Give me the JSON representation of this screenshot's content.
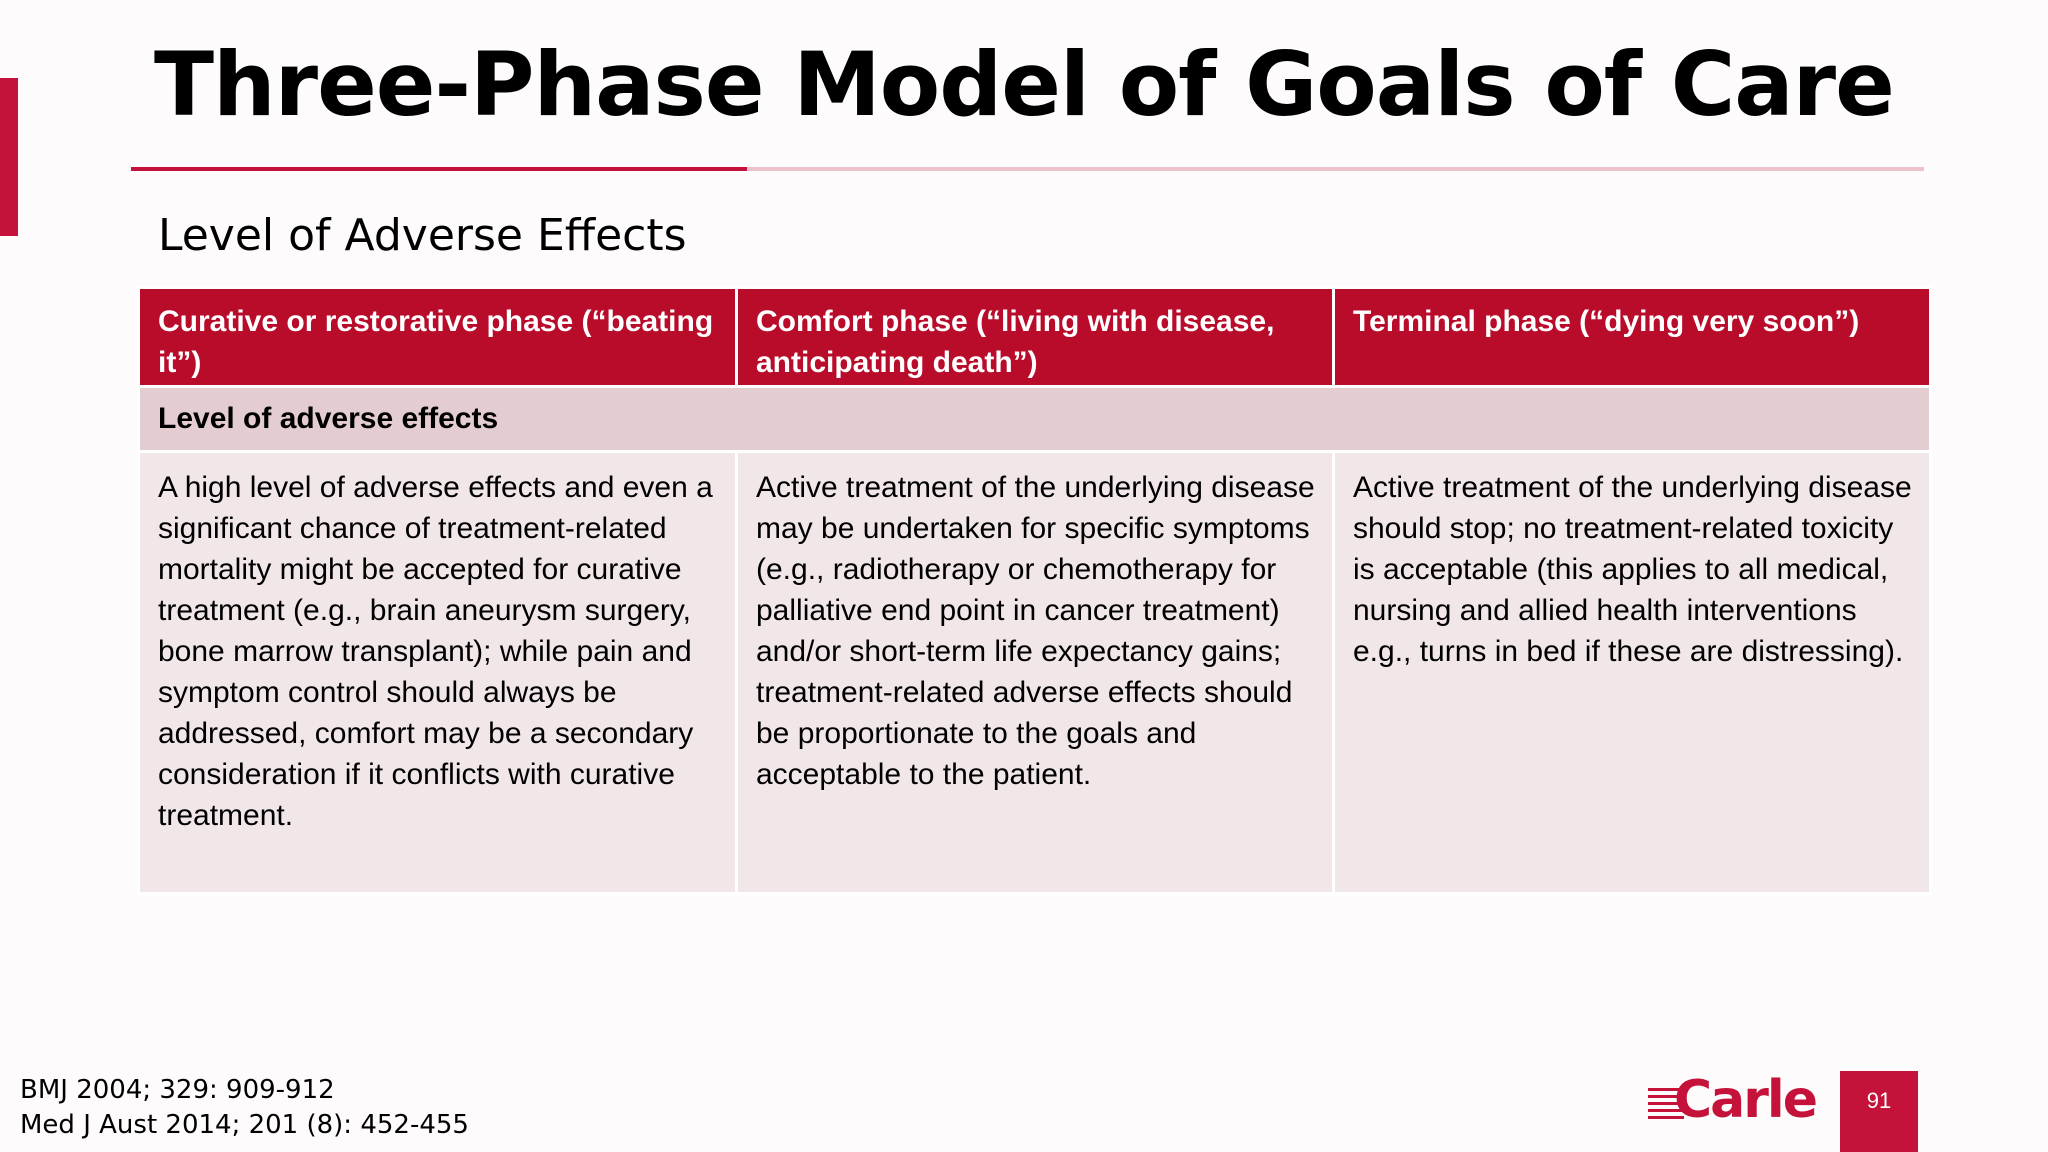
{
  "slide": {
    "title": "Three-Phase Model of Goals of Care",
    "subtitle": "Level of Adverse Effects",
    "page_number": "91"
  },
  "table": {
    "headers": [
      "Curative or restorative phase (“beating it”)",
      "Comfort phase (“living with disease, anticipating death”)",
      "Terminal phase (“dying very soon”)"
    ],
    "section_label": "Level of adverse effects",
    "cells": [
      "A high level of adverse effects and even a significant chance of treatment-related mortality might be accepted for curative treatment (e.g., brain aneurysm surgery, bone marrow transplant); while pain and symptom control should always be addressed, comfort may be a secondary consideration if it conflicts with curative treatment.",
      "Active treatment of the underlying disease may be undertaken for specific symptoms (e.g., radiotherapy or chemotherapy for palliative end point in cancer treatment) and/or short-term life expectancy gains; treatment-related adverse effects should be proportionate to the goals and acceptable to the patient.",
      "Active treatment of the underlying disease should stop; no treatment-related toxicity is acceptable (this applies to all medical, nursing and allied health interventions e.g., turns in bed if these are distressing)."
    ]
  },
  "references": [
    "BMJ 2004; 329: 909-912",
    "Med J Aust 2014; 201 (8): 452-455"
  ],
  "logo": {
    "text": "Carle"
  },
  "colors": {
    "brand_red": "#c4123a",
    "header_red": "#b90c2b",
    "section_bg": "#e4cdd1",
    "cell_bg": "#f1e7e9"
  }
}
